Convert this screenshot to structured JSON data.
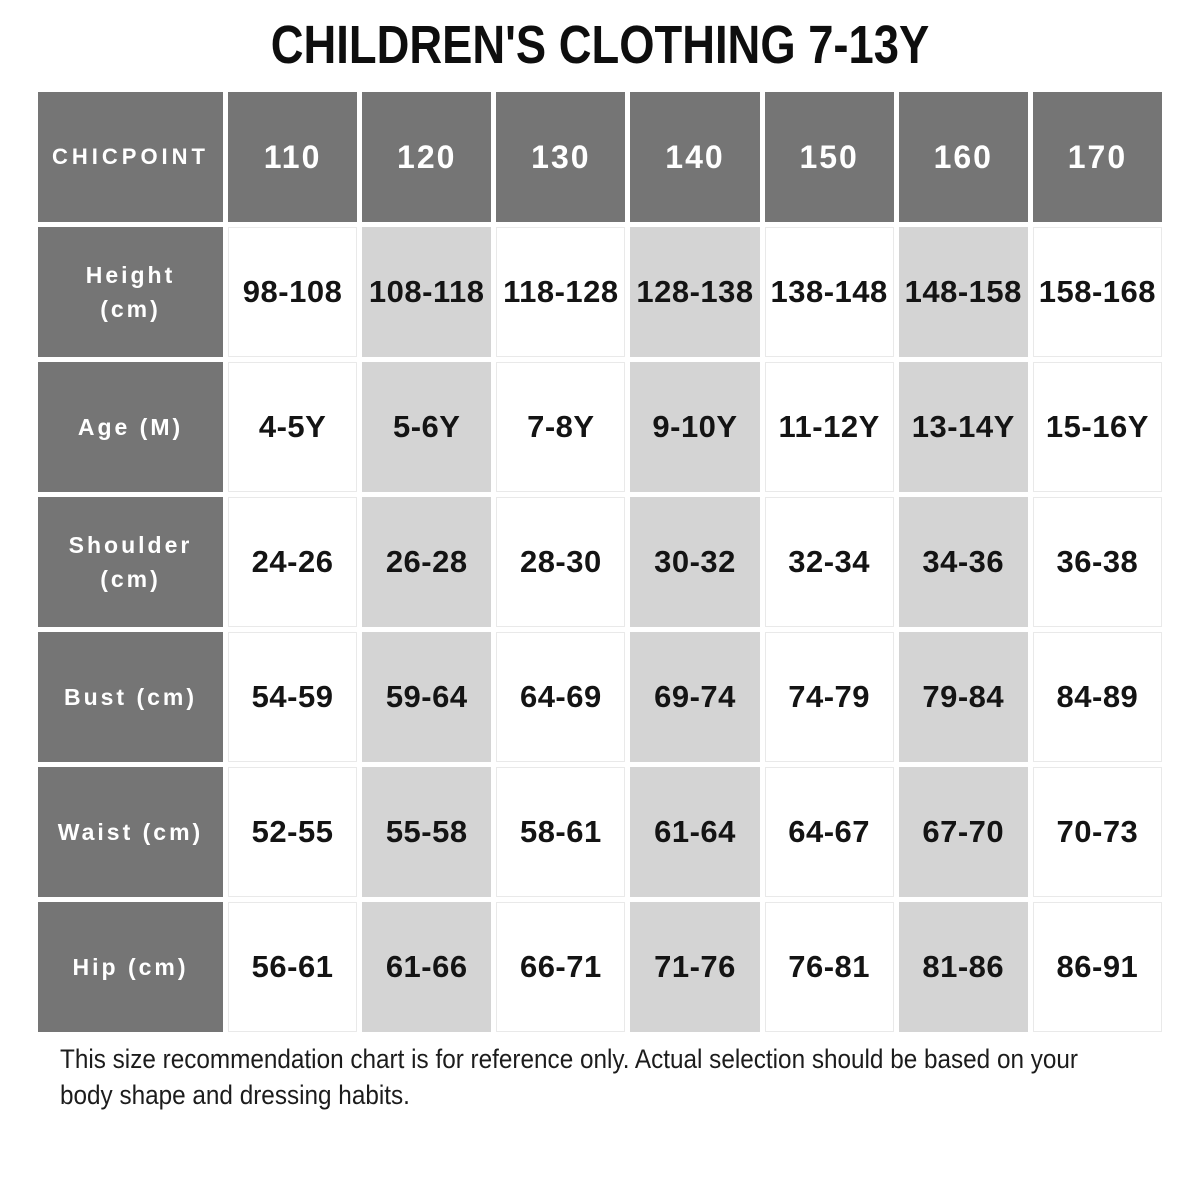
{
  "title": "CHILDREN'S CLOTHING 7-13Y",
  "chart_data": {
    "type": "table",
    "title": "CHILDREN'S CLOTHING 7-13Y",
    "brand_header": "CHICPOINT",
    "columns": [
      "110",
      "120",
      "130",
      "140",
      "150",
      "160",
      "170"
    ],
    "rows": [
      {
        "label": "Height (cm)",
        "values": [
          "98-108",
          "108-118",
          "118-128",
          "128-138",
          "138-148",
          "148-158",
          "158-168"
        ]
      },
      {
        "label": "Age (M)",
        "values": [
          "4-5Y",
          "5-6Y",
          "7-8Y",
          "9-10Y",
          "11-12Y",
          "13-14Y",
          "15-16Y"
        ]
      },
      {
        "label": "Shoulder (cm)",
        "values": [
          "24-26",
          "26-28",
          "28-30",
          "30-32",
          "32-34",
          "34-36",
          "36-38"
        ]
      },
      {
        "label": "Bust (cm)",
        "values": [
          "54-59",
          "59-64",
          "64-69",
          "69-74",
          "74-79",
          "79-84",
          "84-89"
        ]
      },
      {
        "label": "Waist (cm)",
        "values": [
          "52-55",
          "55-58",
          "58-61",
          "61-64",
          "64-67",
          "67-70",
          "70-73"
        ]
      },
      {
        "label": "Hip (cm)",
        "values": [
          "56-61",
          "61-66",
          "66-71",
          "71-76",
          "76-81",
          "81-86",
          "86-91"
        ]
      }
    ],
    "striped_columns": [
      "120",
      "140",
      "160"
    ],
    "layout_hints": {
      "grid": "on",
      "legend": "none"
    }
  },
  "footer": {
    "lines": [
      "This size recommendation chart is for reference only. Actual selection should be based on your",
      "body shape and dressing habits."
    ]
  },
  "colors": {
    "header_bg": "#757575",
    "stripe_bg": "#d4d4d4",
    "cell_border": "#e9e9e9",
    "value_text": "#141414",
    "title_text": "#0e0e0e"
  }
}
